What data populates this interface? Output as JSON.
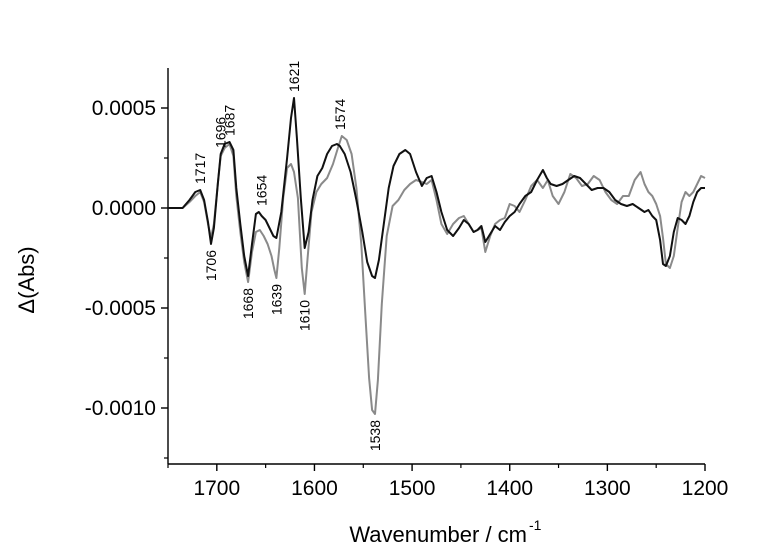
{
  "chart_data": {
    "type": "line",
    "title": "",
    "xlabel": "Wavenumber / cm",
    "xlabel_superscript": "-1",
    "ylabel": "Δ(Abs)",
    "xlim": [
      1750,
      1200
    ],
    "ylim": [
      -0.00128,
      0.0007
    ],
    "x_reversed": true,
    "x_ticks": [
      1700,
      1600,
      1500,
      1400,
      1300,
      1200
    ],
    "x_tick_labels": [
      "1700",
      "1600",
      "1500",
      "1400",
      "1300",
      "1200"
    ],
    "y_ticks": [
      0.0005,
      0.0,
      -0.0005,
      -0.001
    ],
    "y_tick_labels": [
      "0.0005",
      "0.0000",
      "-0.0005",
      "-0.0010"
    ],
    "grid": false,
    "legend": "none",
    "series": [
      {
        "color": "#111111",
        "x": [
          1750,
          1735,
          1728,
          1722,
          1717,
          1713,
          1709,
          1706,
          1703,
          1699,
          1696,
          1692,
          1687,
          1683,
          1680,
          1676,
          1672,
          1668,
          1664,
          1660,
          1657,
          1654,
          1650,
          1646,
          1642,
          1639,
          1634,
          1628,
          1624,
          1621,
          1618,
          1614,
          1610,
          1606,
          1602,
          1597,
          1592,
          1587,
          1582,
          1577,
          1574,
          1569,
          1563,
          1557,
          1551,
          1546,
          1541,
          1538,
          1534,
          1529,
          1524,
          1519,
          1513,
          1507,
          1502,
          1496,
          1490,
          1485,
          1480,
          1475,
          1470,
          1464,
          1458,
          1452,
          1447,
          1442,
          1437,
          1433,
          1429,
          1425,
          1420,
          1415,
          1410,
          1405,
          1400,
          1395,
          1390,
          1384,
          1378,
          1372,
          1366,
          1362,
          1358,
          1352,
          1346,
          1340,
          1334,
          1328,
          1322,
          1316,
          1310,
          1304,
          1298,
          1292,
          1286,
          1280,
          1274,
          1268,
          1262,
          1258,
          1254,
          1250,
          1246,
          1243,
          1240,
          1236,
          1232,
          1228,
          1224,
          1220,
          1216,
          1212,
          1208,
          1204,
          1200
        ],
        "y": [
          0,
          0,
          4e-05,
          8e-05,
          9e-05,
          4e-05,
          -7e-05,
          -0.00018,
          -0.0001,
          0.00012,
          0.00027,
          0.00032,
          0.00033,
          0.00029,
          0.0001,
          -8e-05,
          -0.00024,
          -0.00034,
          -0.00018,
          -3e-05,
          -2e-05,
          -4e-05,
          -6e-05,
          -0.0001,
          -0.00014,
          -0.00015,
          -2e-05,
          0.00025,
          0.00045,
          0.00055,
          0.00035,
          5e-05,
          -0.0002,
          -0.00012,
          4e-05,
          0.00016,
          0.0002,
          0.00027,
          0.00031,
          0.00032,
          0.00031,
          0.00027,
          0.00018,
          4e-05,
          -0.00012,
          -0.00027,
          -0.00034,
          -0.00035,
          -0.00026,
          -8e-05,
          0.0001,
          0.00021,
          0.00027,
          0.00029,
          0.00027,
          0.00018,
          0.00011,
          0.00015,
          0.00016,
          8e-05,
          -2e-05,
          -0.00011,
          -0.00014,
          -0.0001,
          -6e-05,
          -8e-05,
          -0.00012,
          -0.00011,
          -9e-05,
          -0.00017,
          -0.00013,
          -9e-05,
          -0.00011,
          -7e-05,
          -4e-05,
          -2e-05,
          2e-05,
          6e-05,
          8e-05,
          0.00014,
          0.00019,
          0.00015,
          0.00012,
          0.00011,
          0.00012,
          0.00014,
          0.00016,
          0.00015,
          0.00012,
          9e-05,
          0.0001,
          0.0001,
          8e-05,
          4e-05,
          2e-05,
          1e-05,
          2e-05,
          0,
          -2e-05,
          -1e-05,
          -4e-05,
          -6e-05,
          -0.00016,
          -0.00028,
          -0.00029,
          -0.00024,
          -0.00012,
          -5e-05,
          -6e-05,
          -8e-05,
          -4e-05,
          3e-05,
          8e-05,
          0.0001,
          0.0001
        ]
      },
      {
        "color": "#8a8a8a",
        "x": [
          1750,
          1735,
          1728,
          1722,
          1717,
          1713,
          1709,
          1706,
          1703,
          1699,
          1696,
          1692,
          1687,
          1683,
          1680,
          1676,
          1672,
          1668,
          1664,
          1660,
          1656,
          1652,
          1648,
          1644,
          1641,
          1639,
          1636,
          1632,
          1628,
          1624,
          1621,
          1617,
          1613,
          1610,
          1607,
          1603,
          1598,
          1593,
          1587,
          1581,
          1576,
          1572,
          1567,
          1562,
          1557,
          1552,
          1548,
          1544,
          1541,
          1538,
          1535,
          1531,
          1526,
          1520,
          1514,
          1508,
          1502,
          1496,
          1490,
          1485,
          1480,
          1475,
          1470,
          1464,
          1458,
          1452,
          1447,
          1442,
          1437,
          1433,
          1429,
          1425,
          1420,
          1415,
          1410,
          1405,
          1400,
          1395,
          1390,
          1384,
          1378,
          1372,
          1366,
          1361,
          1356,
          1350,
          1344,
          1338,
          1332,
          1326,
          1320,
          1314,
          1308,
          1302,
          1296,
          1290,
          1284,
          1278,
          1272,
          1266,
          1262,
          1258,
          1254,
          1250,
          1246,
          1243,
          1240,
          1236,
          1232,
          1228,
          1224,
          1220,
          1216,
          1212,
          1208,
          1204,
          1200
        ],
        "y": [
          0,
          0,
          3e-05,
          6e-05,
          8e-05,
          3e-05,
          -8e-05,
          -0.00015,
          -8e-05,
          0.00012,
          0.00026,
          0.0003,
          0.00032,
          0.00026,
          6e-05,
          -0.00012,
          -0.00027,
          -0.00037,
          -0.00022,
          -0.00012,
          -0.00011,
          -0.00014,
          -0.00018,
          -0.00024,
          -0.00031,
          -0.00035,
          -0.0002,
          5e-05,
          0.0002,
          0.00022,
          0.00018,
          5e-05,
          -0.0003,
          -0.00043,
          -0.00025,
          -2e-05,
          8e-05,
          0.00012,
          0.00015,
          0.00022,
          0.0003,
          0.00036,
          0.00034,
          0.00027,
          0.0001,
          -0.00018,
          -0.00052,
          -0.00085,
          -0.00101,
          -0.00103,
          -0.00086,
          -0.00048,
          -0.00014,
          1e-05,
          4e-05,
          9e-05,
          0.00012,
          0.00014,
          0.00013,
          0.00012,
          0.00014,
          4e-05,
          -8e-05,
          -0.00013,
          -8e-05,
          -5e-05,
          -4e-05,
          -8e-05,
          -0.00012,
          -0.00011,
          -0.0001,
          -0.00022,
          -0.00014,
          -8e-05,
          -6e-05,
          -5e-05,
          2e-05,
          1e-05,
          -2e-05,
          4e-05,
          0.00011,
          0.00014,
          0.0001,
          0.00014,
          6e-05,
          2e-05,
          8e-05,
          0.00017,
          0.00015,
          0.00011,
          0.00012,
          0.00016,
          0.00014,
          8e-05,
          4e-05,
          2e-05,
          6e-05,
          6e-05,
          0.00014,
          0.00018,
          0.00012,
          8e-05,
          6e-05,
          2e-05,
          -4e-05,
          -0.00015,
          -0.00028,
          -0.0003,
          -0.00024,
          -0.0001,
          3e-05,
          8e-05,
          6e-05,
          8e-05,
          0.00012,
          0.00016,
          0.00015
        ]
      }
    ],
    "annotations": [
      {
        "text": "1717",
        "x": 1717,
        "y": 9e-05,
        "side": "above"
      },
      {
        "text": "1696",
        "x": 1696,
        "y": 0.00027,
        "side": "above"
      },
      {
        "text": "1687",
        "x": 1687,
        "y": 0.00033,
        "side": "above"
      },
      {
        "text": "1654",
        "x": 1654,
        "y": -2e-05,
        "side": "above"
      },
      {
        "text": "1621",
        "x": 1621,
        "y": 0.00055,
        "side": "above"
      },
      {
        "text": "1574",
        "x": 1574,
        "y": 0.00036,
        "side": "above"
      },
      {
        "text": "1706",
        "x": 1706,
        "y": -0.00018,
        "side": "below"
      },
      {
        "text": "1668",
        "x": 1668,
        "y": -0.00037,
        "side": "below"
      },
      {
        "text": "1639",
        "x": 1639,
        "y": -0.00035,
        "side": "below"
      },
      {
        "text": "1610",
        "x": 1610,
        "y": -0.00043,
        "side": "below"
      },
      {
        "text": "1538",
        "x": 1538,
        "y": -0.00103,
        "side": "below"
      }
    ]
  }
}
